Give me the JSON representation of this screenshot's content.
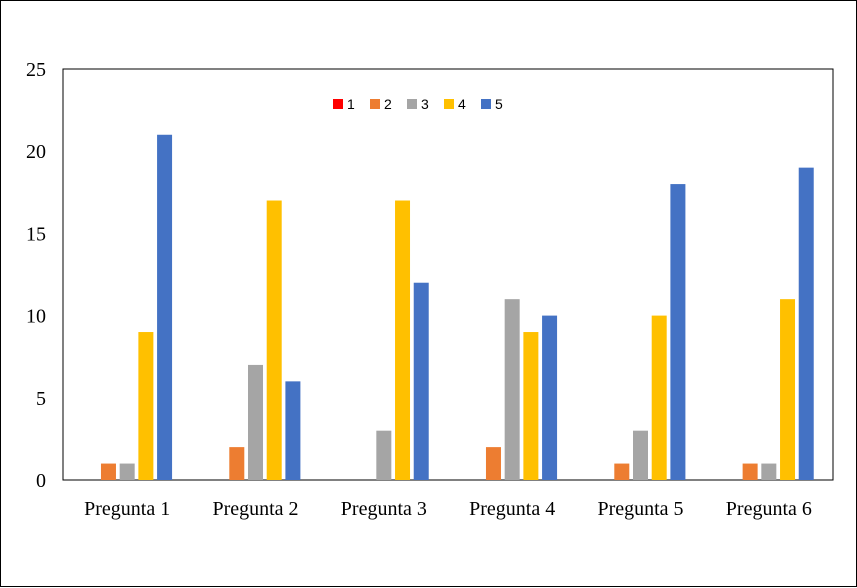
{
  "chart_data": {
    "type": "bar",
    "title": "",
    "xlabel": "",
    "ylabel": "",
    "categories": [
      "Pregunta 1",
      "Pregunta 2",
      "Pregunta 3",
      "Pregunta 4",
      "Pregunta 5",
      "Pregunta 6"
    ],
    "ylim": [
      0,
      25
    ],
    "yticks": [
      0,
      5,
      10,
      15,
      20,
      25
    ],
    "grid": false,
    "legend_position": "top-center",
    "series": [
      {
        "name": "1",
        "color": "#FF0000",
        "values": [
          0,
          0,
          0,
          0,
          0,
          0
        ]
      },
      {
        "name": "2",
        "color": "#ED7D31",
        "values": [
          1,
          2,
          0,
          2,
          1,
          1
        ]
      },
      {
        "name": "3",
        "color": "#A5A5A5",
        "values": [
          1,
          7,
          3,
          11,
          3,
          1
        ]
      },
      {
        "name": "4",
        "color": "#FFC000",
        "values": [
          9,
          17,
          17,
          9,
          10,
          11
        ]
      },
      {
        "name": "5",
        "color": "#4472C4",
        "values": [
          21,
          6,
          12,
          10,
          18,
          19
        ]
      }
    ]
  }
}
